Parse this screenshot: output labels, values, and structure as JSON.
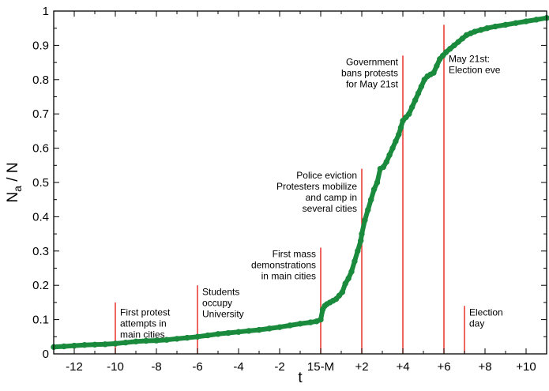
{
  "colors": {
    "series": "#1a8a3c",
    "event_lines": "#e8231c",
    "axes": "#000000"
  },
  "chart_data": {
    "type": "scatter",
    "xlabel": "t",
    "ylabel_main": "N",
    "ylabel_sub": "a",
    "ylabel_tail": " / N",
    "xlim": [
      -13,
      11
    ],
    "ylim": [
      0,
      1
    ],
    "grid": false,
    "x_ticks": [
      {
        "v": -12,
        "label": "-12"
      },
      {
        "v": -10,
        "label": "-10"
      },
      {
        "v": -8,
        "label": "-8"
      },
      {
        "v": -6,
        "label": "-6"
      },
      {
        "v": -4,
        "label": "-4"
      },
      {
        "v": -2,
        "label": "-2"
      },
      {
        "v": 0,
        "label": "15-M"
      },
      {
        "v": 2,
        "label": "+2"
      },
      {
        "v": 4,
        "label": "+4"
      },
      {
        "v": 6,
        "label": "+6"
      },
      {
        "v": 8,
        "label": "+8"
      },
      {
        "v": 10,
        "label": "+10"
      }
    ],
    "y_ticks": [
      {
        "v": 0,
        "label": "0"
      },
      {
        "v": 0.1,
        "label": "0.1"
      },
      {
        "v": 0.2,
        "label": "0.2"
      },
      {
        "v": 0.3,
        "label": "0.3"
      },
      {
        "v": 0.4,
        "label": "0.4"
      },
      {
        "v": 0.5,
        "label": "0.5"
      },
      {
        "v": 0.6,
        "label": "0.6"
      },
      {
        "v": 0.7,
        "label": "0.7"
      },
      {
        "v": 0.8,
        "label": "0.8"
      },
      {
        "v": 0.9,
        "label": "0.9"
      },
      {
        "v": 1,
        "label": "1"
      }
    ],
    "series": [
      {
        "x": [
          -13.0,
          -12.5,
          -12.0,
          -11.5,
          -11.0,
          -10.5,
          -10.0,
          -9.5,
          -9.0,
          -8.5,
          -8.0,
          -7.5,
          -7.0,
          -6.5,
          -6.0,
          -5.5,
          -5.0,
          -4.5,
          -4.0,
          -3.5,
          -3.0,
          -2.5,
          -2.0,
          -1.5,
          -1.0,
          -0.5,
          -0.2,
          0.0,
          0.1,
          0.2,
          0.3,
          0.45,
          0.6,
          0.75,
          0.9,
          1.05,
          1.2,
          1.35,
          1.5,
          1.65,
          1.8,
          1.95,
          2.0,
          2.15,
          2.3,
          2.45,
          2.6,
          2.75,
          2.9,
          3.05,
          3.2,
          3.35,
          3.5,
          3.65,
          3.8,
          3.9,
          4.0,
          4.15,
          4.3,
          4.45,
          4.6,
          4.75,
          4.9,
          5.05,
          5.2,
          5.35,
          5.5,
          5.65,
          5.8,
          5.95,
          6.1,
          6.3,
          6.5,
          6.7,
          6.9,
          7.1,
          7.3,
          7.5,
          7.8,
          8.1,
          8.5,
          9.0,
          9.5,
          10.0,
          10.5,
          11.0
        ],
        "y": [
          0.02,
          0.022,
          0.024,
          0.026,
          0.027,
          0.028,
          0.03,
          0.033,
          0.036,
          0.038,
          0.039,
          0.041,
          0.044,
          0.047,
          0.05,
          0.054,
          0.058,
          0.061,
          0.064,
          0.067,
          0.07,
          0.074,
          0.078,
          0.083,
          0.088,
          0.092,
          0.095,
          0.1,
          0.13,
          0.14,
          0.145,
          0.15,
          0.155,
          0.16,
          0.17,
          0.18,
          0.205,
          0.22,
          0.24,
          0.27,
          0.3,
          0.33,
          0.35,
          0.39,
          0.42,
          0.45,
          0.48,
          0.5,
          0.54,
          0.545,
          0.56,
          0.58,
          0.6,
          0.62,
          0.64,
          0.66,
          0.68,
          0.69,
          0.7,
          0.72,
          0.74,
          0.76,
          0.78,
          0.8,
          0.81,
          0.815,
          0.82,
          0.84,
          0.86,
          0.87,
          0.88,
          0.89,
          0.9,
          0.91,
          0.92,
          0.93,
          0.935,
          0.94,
          0.945,
          0.95,
          0.955,
          0.96,
          0.965,
          0.97,
          0.975,
          0.98
        ]
      }
    ],
    "events": [
      {
        "x": -10,
        "y_top": 0.15,
        "label_lines": [
          "First protest",
          "attempts in",
          "main cities"
        ],
        "label_pos": "right",
        "label_y_top": 0.135
      },
      {
        "x": -6,
        "y_top": 0.2,
        "label_lines": [
          "Students",
          "occupy",
          "University"
        ],
        "label_pos": "right",
        "label_y_top": 0.195
      },
      {
        "x": 0,
        "y_top": 0.31,
        "label_lines": [
          "First mass",
          "demonstrations",
          "in main cities"
        ],
        "label_pos": "left",
        "label_y_top": 0.305
      },
      {
        "x": 2,
        "y_top": 0.54,
        "label_lines": [
          "Police eviction",
          "Protesters mobilize",
          "and camp in",
          "several cities"
        ],
        "label_pos": "left",
        "label_y_top": 0.535
      },
      {
        "x": 4,
        "y_top": 0.87,
        "label_lines": [
          "Government",
          "bans protests",
          "for May 21st"
        ],
        "label_pos": "left",
        "label_y_top": 0.865
      },
      {
        "x": 6,
        "y_top": 0.96,
        "label_lines": [
          "May 21st:",
          "Election eve"
        ],
        "label_pos": "right",
        "label_y_top": 0.875
      },
      {
        "x": 7,
        "y_top": 0.14,
        "label_lines": [
          "Election",
          "day"
        ],
        "label_pos": "right",
        "label_y_top": 0.135
      }
    ]
  }
}
